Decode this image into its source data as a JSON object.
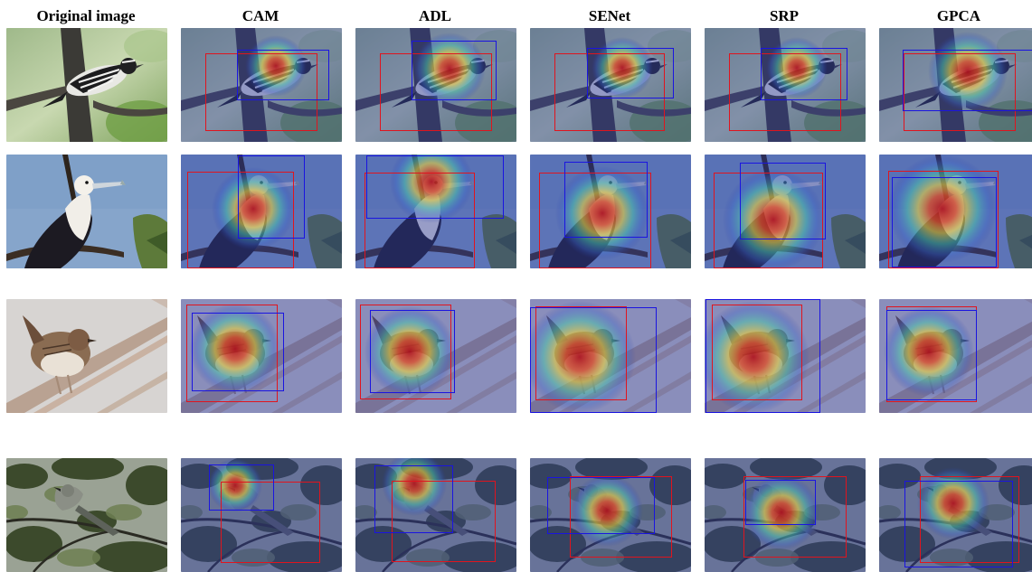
{
  "figure": {
    "columns": [
      {
        "key": "original",
        "title": "Original image"
      },
      {
        "key": "cam",
        "title": "CAM"
      },
      {
        "key": "adl",
        "title": "ADL"
      },
      {
        "key": "senet",
        "title": "SENet"
      },
      {
        "key": "srp",
        "title": "SRP"
      },
      {
        "key": "gpca",
        "title": "GPCA"
      }
    ],
    "rows": [
      {
        "key": "bird-1",
        "scene": "warbler-on-branch"
      },
      {
        "key": "bird-2",
        "scene": "frigatebird-on-branch"
      },
      {
        "key": "bird-3",
        "scene": "wren-on-reed"
      },
      {
        "key": "bird-4",
        "scene": "bird-in-foliage"
      }
    ],
    "colors": {
      "ground_truth_box": "#e0141e",
      "predicted_box": "#1a14e0"
    }
  }
}
